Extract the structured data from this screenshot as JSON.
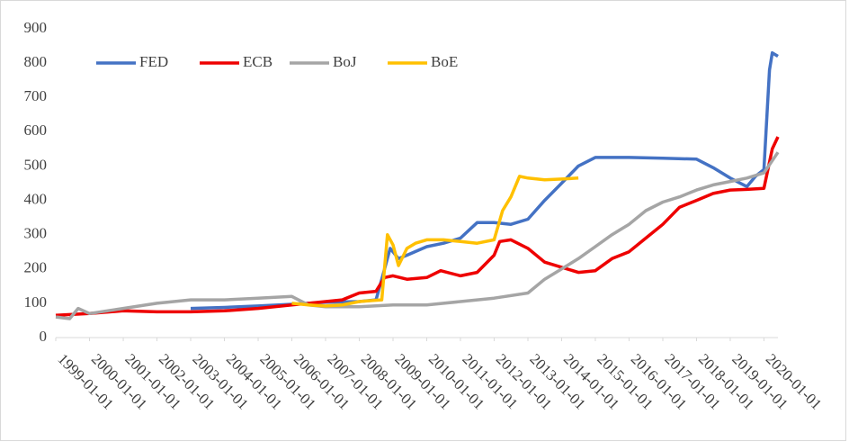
{
  "chart_data": {
    "type": "line",
    "xlim": [
      "1999-01-01",
      "2020-06-01"
    ],
    "xticks": [
      "1999-01-01",
      "2000-01-01",
      "2001-01-01",
      "2002-01-01",
      "2003-01-01",
      "2004-01-01",
      "2005-01-01",
      "2006-01-01",
      "2007-01-01",
      "2008-01-01",
      "2009-01-01",
      "2010-01-01",
      "2011-01-01",
      "2012-01-01",
      "2013-01-01",
      "2014-01-01",
      "2015-01-01",
      "2016-01-01",
      "2017-01-01",
      "2018-01-01",
      "2019-01-01",
      "2020-01-01"
    ],
    "ylim": [
      0,
      900
    ],
    "yticks": [
      0,
      100,
      200,
      300,
      400,
      500,
      600,
      700,
      800,
      900
    ],
    "grid": false,
    "legend": "top-left",
    "series": [
      {
        "name": "FED",
        "color": "#4472c4",
        "x": [
          "2003-01-01",
          "2004-01-01",
          "2005-01-01",
          "2006-01-01",
          "2007-01-01",
          "2008-01-01",
          "2008-07-01",
          "2008-10-01",
          "2008-12-01",
          "2009-03-01",
          "2009-06-01",
          "2010-01-01",
          "2010-07-01",
          "2011-01-01",
          "2011-07-01",
          "2012-01-01",
          "2012-07-01",
          "2013-01-01",
          "2013-07-01",
          "2014-01-01",
          "2014-07-01",
          "2015-01-01",
          "2016-01-01",
          "2017-01-01",
          "2018-01-01",
          "2018-07-01",
          "2019-01-01",
          "2019-07-01",
          "2019-10-01",
          "2020-01-01",
          "2020-03-01",
          "2020-04-01",
          "2020-06-01"
        ],
        "values": [
          85,
          88,
          92,
          97,
          103,
          105,
          110,
          200,
          260,
          230,
          240,
          265,
          275,
          290,
          335,
          335,
          330,
          345,
          400,
          450,
          500,
          525,
          525,
          523,
          520,
          495,
          465,
          440,
          470,
          490,
          780,
          830,
          820
        ]
      },
      {
        "name": "ECB",
        "color": "#ee0000",
        "x": [
          "1999-01-01",
          "2000-01-01",
          "2001-01-01",
          "2002-01-01",
          "2003-01-01",
          "2004-01-01",
          "2005-01-01",
          "2006-01-01",
          "2007-01-01",
          "2007-07-01",
          "2008-01-01",
          "2008-07-01",
          "2008-10-01",
          "2009-01-01",
          "2009-06-01",
          "2010-01-01",
          "2010-06-01",
          "2011-01-01",
          "2011-07-01",
          "2012-01-01",
          "2012-03-01",
          "2012-07-01",
          "2013-01-01",
          "2013-07-01",
          "2014-01-01",
          "2014-07-01",
          "2015-01-01",
          "2015-07-01",
          "2016-01-01",
          "2016-07-01",
          "2017-01-01",
          "2017-07-01",
          "2018-01-01",
          "2018-07-01",
          "2019-01-01",
          "2019-07-01",
          "2020-01-01",
          "2020-04-01",
          "2020-06-01"
        ],
        "values": [
          65,
          70,
          78,
          75,
          75,
          78,
          85,
          95,
          105,
          110,
          130,
          135,
          175,
          180,
          170,
          175,
          195,
          180,
          190,
          240,
          280,
          285,
          260,
          220,
          205,
          190,
          195,
          230,
          250,
          290,
          330,
          380,
          400,
          420,
          430,
          432,
          435,
          550,
          585
        ]
      },
      {
        "name": "BoJ",
        "color": "#a5a5a5",
        "x": [
          "1999-01-01",
          "1999-06-01",
          "1999-09-01",
          "2000-01-01",
          "2001-01-01",
          "2002-01-01",
          "2003-01-01",
          "2004-01-01",
          "2005-01-01",
          "2006-01-01",
          "2006-07-01",
          "2007-01-01",
          "2008-01-01",
          "2009-01-01",
          "2010-01-01",
          "2011-01-01",
          "2012-01-01",
          "2013-01-01",
          "2013-07-01",
          "2014-01-01",
          "2014-07-01",
          "2015-01-01",
          "2015-07-01",
          "2016-01-01",
          "2016-07-01",
          "2017-01-01",
          "2017-07-01",
          "2018-01-01",
          "2018-07-01",
          "2019-01-01",
          "2019-07-01",
          "2020-01-01",
          "2020-06-01"
        ],
        "values": [
          60,
          55,
          85,
          70,
          85,
          100,
          110,
          110,
          115,
          120,
          95,
          90,
          90,
          95,
          95,
          105,
          115,
          130,
          170,
          200,
          230,
          265,
          300,
          330,
          370,
          395,
          410,
          430,
          445,
          455,
          465,
          480,
          540
        ]
      },
      {
        "name": "BoE",
        "color": "#ffc000",
        "x": [
          "2006-01-01",
          "2006-07-01",
          "2007-01-01",
          "2007-07-01",
          "2008-01-01",
          "2008-06-01",
          "2008-09-01",
          "2008-11-01",
          "2009-01-01",
          "2009-03-01",
          "2009-06-01",
          "2009-09-01",
          "2010-01-01",
          "2010-07-01",
          "2011-01-01",
          "2011-07-01",
          "2012-01-01",
          "2012-04-01",
          "2012-07-01",
          "2012-10-01",
          "2013-01-01",
          "2013-07-01",
          "2014-01-01",
          "2014-07-01"
        ],
        "values": [
          100,
          95,
          92,
          95,
          105,
          108,
          110,
          300,
          270,
          210,
          260,
          275,
          285,
          285,
          280,
          275,
          285,
          370,
          410,
          470,
          465,
          460,
          462,
          465
        ]
      }
    ]
  }
}
